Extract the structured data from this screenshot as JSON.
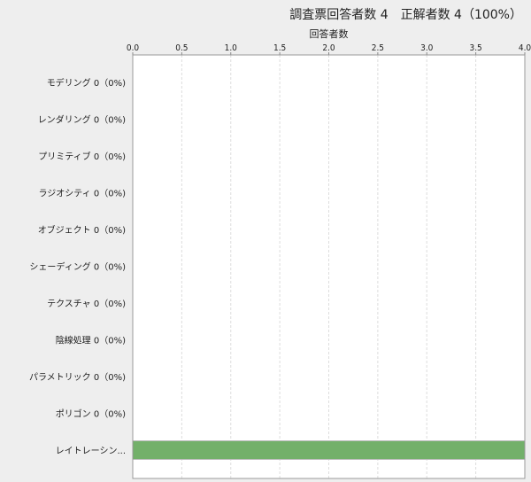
{
  "chart_data": {
    "type": "bar",
    "orientation": "horizontal",
    "title": "調査票回答者数 4　正解者数 4（100%）",
    "xlabel": "回答者数",
    "ylabel": "",
    "xlim": [
      0,
      4.0
    ],
    "xticks": [
      "0.0",
      "0.5",
      "1.0",
      "1.5",
      "2.0",
      "2.5",
      "3.0",
      "3.5",
      "4.0"
    ],
    "grid": true,
    "categories": [
      "モデリング 0（0%)",
      "レンダリング 0（0%)",
      "プリミティブ 0（0%)",
      "ラジオシティ 0（0%)",
      "オブジェクト 0（0%)",
      "シェーディング 0（0%)",
      "テクスチャ 0（0%)",
      "陰線処理 0（0%)",
      "パラメトリック 0（0%)",
      "ポリゴン 0（0%)",
      "レイトレーシン..."
    ],
    "values": [
      0,
      0,
      0,
      0,
      0,
      0,
      0,
      0,
      0,
      0,
      4
    ],
    "bar_color": "#73b06a"
  }
}
